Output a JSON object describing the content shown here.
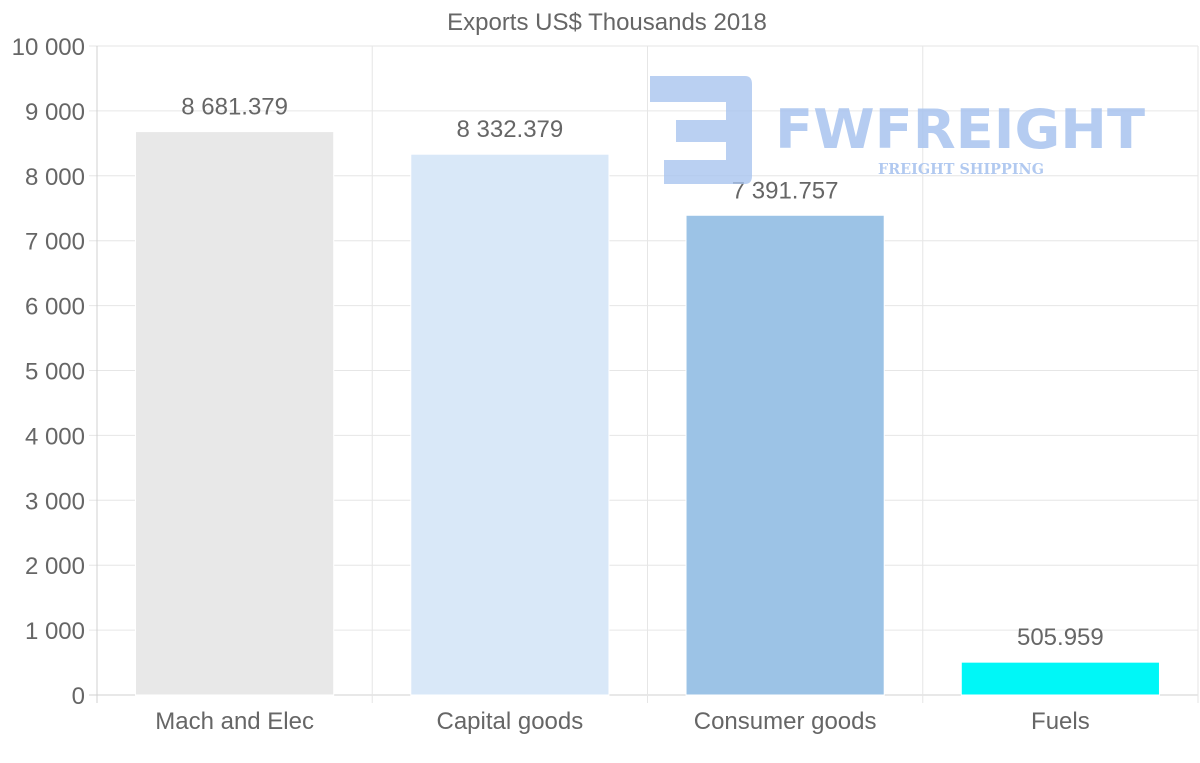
{
  "chart_data": {
    "type": "bar",
    "title": "Exports US$ Thousands 2018",
    "xlabel": "",
    "ylabel": "",
    "ylim": [
      0,
      10000
    ],
    "yticks": [
      0,
      1000,
      2000,
      3000,
      4000,
      5000,
      6000,
      7000,
      8000,
      9000,
      10000
    ],
    "ytick_labels": [
      "0",
      "1 000",
      "2 000",
      "3 000",
      "4 000",
      "5 000",
      "6 000",
      "7 000",
      "8 000",
      "9 000",
      "10 000"
    ],
    "categories": [
      "Mach and Elec",
      "Capital goods",
      "Consumer goods",
      "Fuels"
    ],
    "values": [
      8681.379,
      8332.379,
      7391.757,
      505.959
    ],
    "value_labels": [
      "8 681.379",
      "8 332.379",
      "7 391.757",
      "505.959"
    ],
    "bar_colors": [
      "#e8e8e8",
      "#d9e8f8",
      "#9cc3e6",
      "#00f7f7"
    ],
    "grid": true
  },
  "watermark": {
    "brand": "FWFREIGHT",
    "tagline": "FREIGHT SHIPPING",
    "color": "#a9c4ef"
  }
}
